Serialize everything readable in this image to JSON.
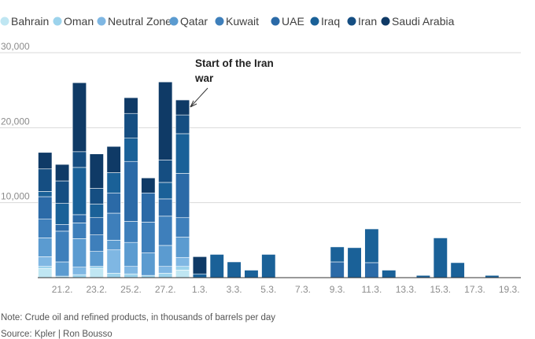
{
  "chart_data": {
    "type": "bar",
    "stacked": true,
    "title": "",
    "xlabel": "",
    "ylabel": "",
    "ylim": [
      0,
      30000
    ],
    "yticks": [
      10000,
      20000,
      30000
    ],
    "ytick_labels": [
      "10,000",
      "20,000",
      "30,000"
    ],
    "grid": true,
    "legend_position": "top",
    "x": [
      "20.2.",
      "21.2.",
      "22.2.",
      "23.2.",
      "24.2.",
      "25.2.",
      "26.2.",
      "27.2.",
      "28.2.",
      "1.3.",
      "2.3.",
      "3.3.",
      "4.3.",
      "5.3.",
      "6.3.",
      "7.3.",
      "8.3.",
      "9.3.",
      "10.3.",
      "11.3.",
      "12.3.",
      "13.3.",
      "14.3.",
      "15.3.",
      "16.3.",
      "17.3.",
      "18.3.",
      "19.3.",
      "20.3."
    ],
    "x_tick_labels": [
      "21.2.",
      "23.2.",
      "25.2.",
      "27.2.",
      "1.3.",
      "3.3.",
      "5.3.",
      "7.3.",
      "9.3.",
      "11.3.",
      "13.3.",
      "15.3.",
      "17.3.",
      "19.3."
    ],
    "x_tick_indices": [
      1,
      3,
      5,
      7,
      9,
      11,
      13,
      15,
      17,
      19,
      21,
      23,
      25,
      27
    ],
    "series": [
      {
        "name": "Bahrain",
        "color": "#bfe6f2",
        "values": [
          1200,
          0,
          0,
          1200,
          0,
          0,
          0,
          0,
          1000,
          0,
          0,
          0,
          0,
          0,
          0,
          0,
          0,
          0,
          0,
          0,
          0,
          0,
          0,
          0,
          0,
          0,
          0,
          0,
          0
        ]
      },
      {
        "name": "Oman",
        "color": "#9cd3ec",
        "values": [
          300,
          200,
          400,
          300,
          600,
          500,
          300,
          600,
          500,
          0,
          0,
          0,
          0,
          0,
          0,
          0,
          0,
          0,
          0,
          0,
          0,
          0,
          0,
          0,
          0,
          0,
          0,
          0,
          0
        ]
      },
      {
        "name": "Neutral Zone",
        "color": "#7fb7e3",
        "values": [
          1300,
          0,
          1000,
          0,
          3100,
          1000,
          0,
          900,
          1200,
          0,
          0,
          0,
          0,
          0,
          0,
          0,
          0,
          0,
          0,
          0,
          0,
          0,
          0,
          0,
          0,
          0,
          0,
          0,
          0
        ]
      },
      {
        "name": "Qatar",
        "color": "#5b9bd0",
        "values": [
          2500,
          1900,
          3800,
          2000,
          1300,
          3200,
          3000,
          2800,
          2700,
          0,
          0,
          0,
          0,
          0,
          0,
          0,
          0,
          0,
          0,
          0,
          0,
          0,
          0,
          0,
          0,
          0,
          0,
          0,
          0
        ]
      },
      {
        "name": "Kuwait",
        "color": "#3e7fbb",
        "values": [
          2500,
          4100,
          2100,
          2200,
          3600,
          2800,
          4100,
          3900,
          2600,
          0,
          0,
          0,
          0,
          0,
          0,
          0,
          0,
          0,
          0,
          0,
          0,
          0,
          0,
          0,
          0,
          0,
          0,
          0,
          0
        ]
      },
      {
        "name": "UAE",
        "color": "#2b6aa7",
        "values": [
          3000,
          900,
          1100,
          2300,
          2700,
          8000,
          3900,
          2300,
          5900,
          0,
          0,
          0,
          0,
          0,
          0,
          0,
          0,
          2100,
          0,
          2000,
          0,
          0,
          0,
          0,
          0,
          0,
          0,
          0,
          0
        ]
      },
      {
        "name": "Iraq",
        "color": "#1a6198",
        "values": [
          700,
          2800,
          6300,
          1800,
          2700,
          3100,
          0,
          2200,
          5300,
          500,
          3100,
          2100,
          1000,
          3100,
          0,
          0,
          0,
          2000,
          4000,
          4500,
          1000,
          0,
          300,
          5300,
          2000,
          0,
          300,
          0,
          0
        ]
      },
      {
        "name": "Iran",
        "color": "#154e82",
        "values": [
          3000,
          3000,
          2100,
          2100,
          0,
          3300,
          0,
          3000,
          2500,
          0,
          0,
          0,
          0,
          0,
          0,
          0,
          0,
          0,
          0,
          0,
          0,
          0,
          0,
          0,
          0,
          0,
          0,
          0,
          0
        ]
      },
      {
        "name": "Saudi Arabia",
        "color": "#0f3a66",
        "values": [
          2200,
          2200,
          9200,
          4600,
          3500,
          2100,
          2000,
          10400,
          2000,
          2300,
          0,
          0,
          0,
          0,
          0,
          0,
          0,
          0,
          0,
          0,
          0,
          0,
          0,
          0,
          0,
          0,
          0,
          0,
          0
        ]
      }
    ],
    "annotations": [
      {
        "text_lines": [
          "Start of the Iran",
          "war"
        ],
        "points_to_index": 8
      }
    ],
    "notes": [
      "Note: Crude oil and refined products, in thousands of barrels per day",
      "Source: Kpler | Ron Bousso"
    ]
  }
}
